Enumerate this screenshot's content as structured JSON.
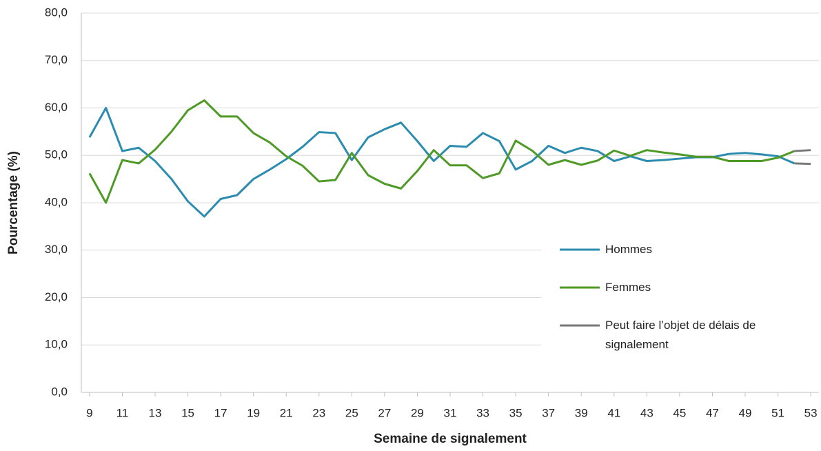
{
  "chart_data": {
    "type": "line",
    "xlabel": "Semaine de signalement",
    "ylabel": "Pourcentage (%)",
    "x": [
      9,
      10,
      11,
      12,
      13,
      14,
      15,
      16,
      17,
      18,
      19,
      20,
      21,
      22,
      23,
      24,
      25,
      26,
      27,
      28,
      29,
      30,
      31,
      32,
      33,
      34,
      35,
      36,
      37,
      38,
      39,
      40,
      41,
      42,
      43,
      44,
      45,
      46,
      47,
      48,
      49,
      50,
      51,
      52,
      53
    ],
    "xlim": [
      8.5,
      53.5
    ],
    "xticks": [
      9,
      11,
      13,
      15,
      17,
      19,
      21,
      23,
      25,
      27,
      29,
      31,
      33,
      35,
      37,
      39,
      41,
      43,
      45,
      47,
      49,
      51,
      53
    ],
    "ylim": [
      0,
      80
    ],
    "yticks": [
      {
        "value": 0,
        "label": "0,0"
      },
      {
        "value": 10,
        "label": "10,0"
      },
      {
        "value": 20,
        "label": "20,0"
      },
      {
        "value": 30,
        "label": "30,0"
      },
      {
        "value": 40,
        "label": "40,0"
      },
      {
        "value": 50,
        "label": "50,0"
      },
      {
        "value": 60,
        "label": "60,0"
      },
      {
        "value": 70,
        "label": "70,0"
      },
      {
        "value": 80,
        "label": "80,0"
      }
    ],
    "grid": true,
    "legend": "right",
    "series": [
      {
        "name": "Hommes",
        "color": "#2b8cb0",
        "values": [
          53.8,
          60,
          50.9,
          51.6,
          48.8,
          45,
          40.3,
          37.1,
          40.8,
          41.6,
          45,
          47,
          49.2,
          51.8,
          54.9,
          54.7,
          49,
          53.8,
          55.5,
          56.9,
          53,
          48.8,
          52,
          51.8,
          54.7,
          53,
          47,
          48.8,
          52,
          50.5,
          51.6,
          50.9,
          48.8,
          49.8,
          48.8,
          49,
          49.3,
          49.6,
          49.6,
          50.3,
          50.5,
          50.2,
          49.8,
          48.3,
          null
        ]
      },
      {
        "name": "Femmes",
        "color": "#4f9a26",
        "values": [
          46.2,
          40,
          49,
          48.3,
          51.2,
          55,
          59.5,
          61.6,
          58.2,
          58.2,
          54.7,
          52.7,
          49.8,
          47.8,
          44.5,
          44.8,
          50.5,
          45.8,
          44,
          43,
          46.7,
          51.1,
          47.9,
          47.9,
          45.2,
          46.2,
          53.1,
          51,
          48,
          49,
          48,
          48.9,
          51,
          49.9,
          51.1,
          50.6,
          50.2,
          49.7,
          49.7,
          48.8,
          48.8,
          48.8,
          49.5,
          50.9,
          null
        ]
      },
      {
        "name": "Peut faire l’objet de délais de signalement",
        "color": "#777777",
        "lines": [
          [
            null,
            null,
            null,
            null,
            null,
            null,
            null,
            null,
            null,
            null,
            null,
            null,
            null,
            null,
            null,
            null,
            null,
            null,
            null,
            null,
            null,
            null,
            null,
            null,
            null,
            null,
            null,
            null,
            null,
            null,
            null,
            null,
            null,
            null,
            null,
            null,
            null,
            null,
            null,
            null,
            null,
            null,
            null,
            48.3,
            48.2
          ],
          [
            null,
            null,
            null,
            null,
            null,
            null,
            null,
            null,
            null,
            null,
            null,
            null,
            null,
            null,
            null,
            null,
            null,
            null,
            null,
            null,
            null,
            null,
            null,
            null,
            null,
            null,
            null,
            null,
            null,
            null,
            null,
            null,
            null,
            null,
            null,
            null,
            null,
            null,
            null,
            null,
            null,
            null,
            null,
            50.9,
            51.1
          ]
        ]
      }
    ]
  }
}
